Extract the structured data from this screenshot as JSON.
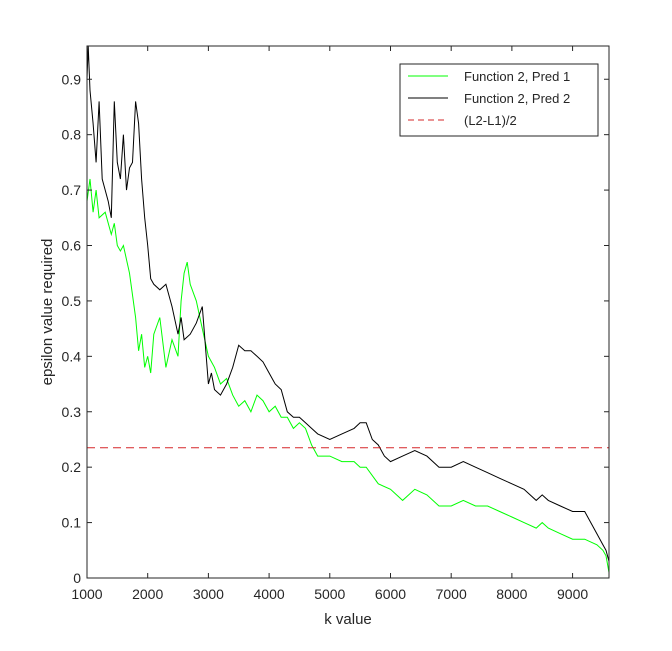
{
  "chart_data": {
    "type": "line",
    "title": "",
    "xlabel": "k value",
    "ylabel": "epsilon value required",
    "xlim": [
      1000,
      9600
    ],
    "ylim": [
      0,
      0.96
    ],
    "xticks": [
      1000,
      2000,
      3000,
      4000,
      5000,
      6000,
      7000,
      8000,
      9000
    ],
    "yticks": [
      0,
      0.1,
      0.2,
      0.3,
      0.4,
      0.5,
      0.6,
      0.7,
      0.8,
      0.9
    ],
    "xtick_labels": [
      "1000",
      "2000",
      "3000",
      "4000",
      "5000",
      "6000",
      "7000",
      "8000",
      "9000"
    ],
    "ytick_labels": [
      "0",
      "0.1",
      "0.2",
      "0.3",
      "0.4",
      "0.5",
      "0.6",
      "0.7",
      "0.8",
      "0.9"
    ],
    "grid": false,
    "legend_position": "top-right",
    "series": [
      {
        "name": "Function 2, Pred 1",
        "color": "#00ff00",
        "style": "solid",
        "x": [
          1000,
          1050,
          1100,
          1150,
          1200,
          1300,
          1400,
          1450,
          1500,
          1550,
          1600,
          1700,
          1800,
          1850,
          1900,
          1950,
          2000,
          2050,
          2100,
          2200,
          2300,
          2400,
          2500,
          2550,
          2600,
          2650,
          2700,
          2800,
          2900,
          3000,
          3100,
          3200,
          3300,
          3400,
          3500,
          3600,
          3700,
          3800,
          3900,
          4000,
          4100,
          4200,
          4300,
          4400,
          4500,
          4600,
          4700,
          4800,
          5000,
          5200,
          5400,
          5500,
          5600,
          5800,
          6000,
          6200,
          6400,
          6600,
          6800,
          7000,
          7200,
          7400,
          7600,
          7800,
          8000,
          8200,
          8400,
          8500,
          8600,
          8800,
          9000,
          9200,
          9400,
          9500,
          9550,
          9600
        ],
        "y": [
          0.68,
          0.72,
          0.66,
          0.7,
          0.65,
          0.66,
          0.62,
          0.64,
          0.6,
          0.59,
          0.6,
          0.55,
          0.47,
          0.41,
          0.44,
          0.38,
          0.4,
          0.37,
          0.44,
          0.47,
          0.38,
          0.43,
          0.4,
          0.5,
          0.55,
          0.57,
          0.53,
          0.5,
          0.45,
          0.4,
          0.38,
          0.35,
          0.36,
          0.33,
          0.31,
          0.32,
          0.3,
          0.33,
          0.32,
          0.3,
          0.31,
          0.29,
          0.29,
          0.27,
          0.28,
          0.27,
          0.24,
          0.22,
          0.22,
          0.21,
          0.21,
          0.2,
          0.2,
          0.17,
          0.16,
          0.14,
          0.16,
          0.15,
          0.13,
          0.13,
          0.14,
          0.13,
          0.13,
          0.12,
          0.11,
          0.1,
          0.09,
          0.1,
          0.09,
          0.08,
          0.07,
          0.07,
          0.06,
          0.05,
          0.04,
          0.01
        ]
      },
      {
        "name": "Function 2, Pred 2",
        "color": "#000000",
        "style": "solid",
        "x": [
          1000,
          1020,
          1050,
          1100,
          1150,
          1200,
          1250,
          1300,
          1350,
          1400,
          1450,
          1500,
          1550,
          1600,
          1650,
          1700,
          1750,
          1800,
          1850,
          1900,
          1950,
          2000,
          2050,
          2100,
          2200,
          2300,
          2400,
          2500,
          2550,
          2600,
          2700,
          2800,
          2900,
          3000,
          3050,
          3100,
          3200,
          3300,
          3400,
          3500,
          3600,
          3700,
          3800,
          3900,
          4000,
          4100,
          4200,
          4300,
          4400,
          4500,
          4600,
          4700,
          4800,
          5000,
          5200,
          5400,
          5500,
          5600,
          5700,
          5800,
          5900,
          6000,
          6200,
          6400,
          6600,
          6800,
          7000,
          7200,
          7400,
          7600,
          7800,
          8000,
          8200,
          8400,
          8500,
          8600,
          8800,
          9000,
          9200,
          9400,
          9500,
          9550,
          9600
        ],
        "y": [
          0.9,
          0.96,
          0.88,
          0.82,
          0.75,
          0.86,
          0.72,
          0.7,
          0.68,
          0.65,
          0.86,
          0.75,
          0.72,
          0.8,
          0.7,
          0.74,
          0.75,
          0.86,
          0.82,
          0.72,
          0.65,
          0.6,
          0.54,
          0.53,
          0.52,
          0.53,
          0.49,
          0.44,
          0.47,
          0.43,
          0.44,
          0.46,
          0.49,
          0.35,
          0.37,
          0.34,
          0.33,
          0.35,
          0.38,
          0.42,
          0.41,
          0.41,
          0.4,
          0.39,
          0.37,
          0.35,
          0.34,
          0.3,
          0.29,
          0.29,
          0.28,
          0.27,
          0.26,
          0.25,
          0.26,
          0.27,
          0.28,
          0.28,
          0.25,
          0.24,
          0.22,
          0.21,
          0.22,
          0.23,
          0.22,
          0.2,
          0.2,
          0.21,
          0.2,
          0.19,
          0.18,
          0.17,
          0.16,
          0.14,
          0.15,
          0.14,
          0.13,
          0.12,
          0.12,
          0.08,
          0.06,
          0.05,
          0.03
        ]
      },
      {
        "name": "(L2-L1)/2",
        "color": "#d62728",
        "style": "dashed",
        "x": [
          1000,
          9600
        ],
        "y": [
          0.235,
          0.235
        ]
      }
    ]
  }
}
